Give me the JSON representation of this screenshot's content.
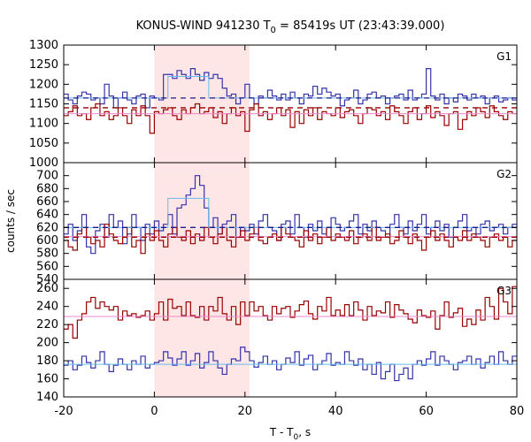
{
  "chart_data": {
    "type": "line",
    "title_main": "KONUS-WIND 941230 T",
    "title_sub": "0",
    "title_rest": " = 85419s UT (23:43:39.000)",
    "xlabel_main": "T - T",
    "xlabel_sub": "0",
    "xlabel_rest": ", s",
    "ylabel": "counts / sec",
    "xlim": [
      -20,
      80
    ],
    "x_ticks": [
      -20,
      0,
      20,
      40,
      60,
      80
    ],
    "highlight_interval": [
      0,
      21
    ],
    "colors": {
      "highlight": "#ffe6e6",
      "blue": "#3333aa",
      "red": "#990000",
      "blue_fit": "#66bbee",
      "red_fit": "#ee88cc",
      "dash_blue": "#1a1a88",
      "dash_red": "#990000"
    },
    "panels": [
      {
        "name": "G1",
        "ylim": [
          1000,
          1300
        ],
        "y_ticks": [
          1000,
          1050,
          1100,
          1150,
          1200,
          1250,
          1300
        ],
        "blue_mean": 1165,
        "red_mean": 1140,
        "blue_fit": [
          1165,
          1165,
          1220,
          1220,
          1165
        ],
        "red_fit_level": 1125,
        "series": [
          {
            "name": "blue",
            "values": [
              1175,
              1160,
              1150,
              1170,
              1180,
              1175,
              1160,
              1165,
              1150,
              1200,
              1170,
              1140,
              1165,
              1180,
              1160,
              1150,
              1170,
              1175,
              1140,
              1170,
              1165,
              1160,
              1225,
              1225,
              1215,
              1235,
              1225,
              1215,
              1240,
              1225,
              1210,
              1230,
              1215,
              1225,
              1215,
              1190,
              1170,
              1175,
              1150,
              1165,
              1200,
              1165,
              1150,
              1170,
              1165,
              1185,
              1170,
              1160,
              1175,
              1160,
              1180,
              1165,
              1150,
              1175,
              1170,
              1195,
              1175,
              1190,
              1180,
              1170,
              1175,
              1145,
              1160,
              1165,
              1185,
              1150,
              1160,
              1175,
              1180,
              1165,
              1170,
              1150,
              1165,
              1170,
              1175,
              1160,
              1185,
              1160,
              1165,
              1175,
              1240,
              1170,
              1160,
              1175,
              1150,
              1165,
              1155,
              1175,
              1170,
              1160,
              1175,
              1165,
              1170,
              1150,
              1165,
              1170,
              1155,
              1160,
              1165,
              1160
            ]
          },
          {
            "name": "red",
            "values": [
              1120,
              1130,
              1145,
              1120,
              1125,
              1110,
              1140,
              1150,
              1120,
              1130,
              1110,
              1120,
              1140,
              1120,
              1100,
              1135,
              1120,
              1145,
              1120,
              1075,
              1130,
              1125,
              1135,
              1140,
              1120,
              1110,
              1135,
              1125,
              1140,
              1150,
              1125,
              1130,
              1140,
              1115,
              1130,
              1100,
              1125,
              1140,
              1120,
              1130,
              1080,
              1135,
              1150,
              1120,
              1130,
              1110,
              1125,
              1140,
              1120,
              1135,
              1090,
              1130,
              1100,
              1135,
              1120,
              1140,
              1110,
              1130,
              1125,
              1120,
              1140,
              1115,
              1130,
              1135,
              1120,
              1100,
              1125,
              1140,
              1135,
              1120,
              1130,
              1110,
              1145,
              1130,
              1120,
              1100,
              1130,
              1140,
              1110,
              1125,
              1145,
              1115,
              1130,
              1120,
              1095,
              1125,
              1130,
              1085,
              1110,
              1130,
              1120,
              1140,
              1130,
              1115,
              1145,
              1130,
              1120,
              1110,
              1130,
              1125
            ]
          }
        ]
      },
      {
        "name": "G2",
        "ylim": [
          540,
          720
        ],
        "y_ticks": [
          540,
          560,
          580,
          600,
          620,
          640,
          660,
          680,
          700
        ],
        "blue_mean": 620,
        "red_mean": 605,
        "blue_fit": [
          620,
          620,
          665,
          665,
          620
        ],
        "red_fit_level": 606,
        "series": [
          {
            "name": "blue",
            "values": [
              610,
              625,
              600,
              615,
              640,
              590,
              580,
              615,
              625,
              605,
              640,
              620,
              630,
              595,
              610,
              640,
              620,
              600,
              625,
              610,
              630,
              615,
              625,
              640,
              610,
              650,
              655,
              670,
              680,
              700,
              685,
              650,
              620,
              635,
              610,
              625,
              630,
              640,
              605,
              620,
              615,
              625,
              610,
              630,
              640,
              620,
              615,
              600,
              625,
              630,
              610,
              640,
              620,
              605,
              625,
              615,
              630,
              610,
              620,
              635,
              625,
              615,
              620,
              630,
              640,
              610,
              625,
              615,
              630,
              620,
              615,
              605,
              625,
              640,
              620,
              610,
              630,
              615,
              625,
              640,
              610,
              620,
              630,
              615,
              625,
              605,
              620,
              630,
              640,
              615,
              620,
              610,
              625,
              630,
              615,
              620,
              625,
              610,
              620,
              625
            ]
          },
          {
            "name": "red",
            "values": [
              600,
              590,
              585,
              610,
              620,
              605,
              595,
              600,
              590,
              625,
              610,
              600,
              595,
              605,
              620,
              590,
              600,
              580,
              610,
              600,
              615,
              600,
              590,
              610,
              620,
              605,
              600,
              615,
              595,
              610,
              600,
              620,
              605,
              595,
              610,
              620,
              600,
              590,
              605,
              615,
              600,
              610,
              620,
              600,
              595,
              605,
              610,
              600,
              620,
              610,
              605,
              600,
              590,
              615,
              600,
              610,
              595,
              605,
              620,
              600,
              610,
              605,
              600,
              615,
              595,
              605,
              610,
              600,
              620,
              600,
              605,
              610,
              595,
              600,
              615,
              605,
              595,
              610,
              600,
              585,
              605,
              615,
              600,
              610,
              600,
              590,
              605,
              600,
              615,
              600,
              610,
              605,
              600,
              590,
              605,
              610,
              600,
              605,
              590,
              600
            ]
          }
        ]
      },
      {
        "name": "G3",
        "ylim": [
          140,
          270
        ],
        "y_ticks": [
          140,
          160,
          180,
          200,
          220,
          240,
          260
        ],
        "blue_mean": 176,
        "red_mean": 229,
        "blue_fit": [
          176,
          176,
          176,
          176,
          176
        ],
        "red_fit_level": 229,
        "series": [
          {
            "name": "blue",
            "values": [
              175,
              180,
              170,
              175,
              185,
              178,
              172,
              180,
              190,
              176,
              168,
              175,
              182,
              176,
              170,
              180,
              176,
              185,
              172,
              176,
              178,
              180,
              190,
              183,
              175,
              182,
              190,
              175,
              180,
              188,
              172,
              178,
              190,
              180,
              172,
              165,
              176,
              182,
              180,
              195,
              190,
              180,
              173,
              178,
              185,
              176,
              180,
              170,
              176,
              183,
              178,
              190,
              175,
              182,
              186,
              170,
              176,
              180,
              188,
              175,
              178,
              176,
              190,
              180,
              175,
              182,
              170,
              176,
              165,
              178,
              160,
              168,
              176,
              158,
              165,
              172,
              160,
              176,
              180,
              175,
              182,
              190,
              175,
              185,
              180,
              176,
              170,
              178,
              180,
              185,
              176,
              182,
              172,
              178,
              185,
              176,
              190,
              180,
              176,
              185
            ]
          },
          {
            "name": "red",
            "values": [
              215,
              220,
              205,
              225,
              232,
              245,
              250,
              238,
              245,
              240,
              236,
              240,
              225,
              235,
              230,
              232,
              228,
              230,
              235,
              225,
              232,
              245,
              225,
              248,
              238,
              240,
              230,
              245,
              230,
              228,
              240,
              225,
              240,
              235,
              250,
              232,
              225,
              240,
              220,
              245,
              230,
              245,
              235,
              240,
              230,
              225,
              240,
              232,
              238,
              240,
              228,
              235,
              242,
              246,
              232,
              226,
              240,
              235,
              250,
              230,
              236,
              230,
              242,
              230,
              245,
              236,
              225,
              240,
              230,
              235,
              233,
              245,
              228,
              242,
              236,
              232,
              226,
              222,
              236,
              230,
              228,
              235,
              215,
              230,
              245,
              228,
              233,
              238,
              218,
              226,
              220,
              236,
              225,
              250,
              240,
              226,
              260,
              245,
              232,
              262
            ]
          }
        ]
      }
    ]
  }
}
